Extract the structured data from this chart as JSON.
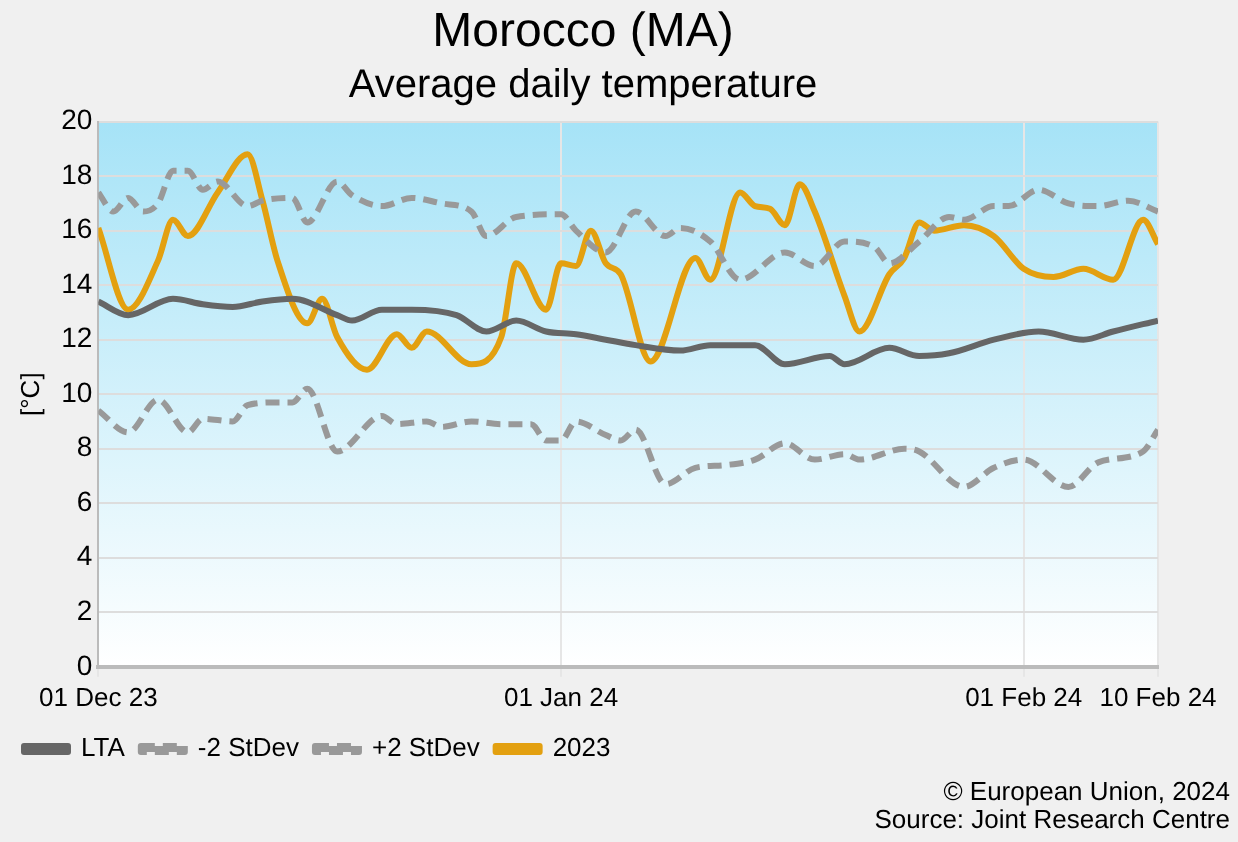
{
  "chart_data": {
    "type": "line",
    "title": "Morocco (MA)",
    "subtitle": "Average daily temperature",
    "ylabel": "[°C]",
    "xlim": [
      "2023-12-01",
      "2024-02-10"
    ],
    "xticks": [
      {
        "value": "2023-12-01",
        "label": "01 Dec 23"
      },
      {
        "value": "2024-01-01",
        "label": "01 Jan 24"
      },
      {
        "value": "2024-02-01",
        "label": "01 Feb 24"
      },
      {
        "value": "2024-02-10",
        "label": "10 Feb 24"
      }
    ],
    "ylim": [
      0,
      20
    ],
    "yticks": [
      0,
      2,
      4,
      6,
      8,
      10,
      12,
      14,
      16,
      18,
      20
    ],
    "grid": true,
    "legend": "bottom left",
    "annotations": [
      "© European Union, 2024",
      "Source: Joint Research Centre"
    ],
    "series": [
      {
        "name": "LTA",
        "color": "#666666",
        "line_style": "solid",
        "x": [
          "2023-12-01",
          "2023-12-03",
          "2023-12-06",
          "2023-12-08",
          "2023-12-10",
          "2023-12-12",
          "2023-12-14",
          "2023-12-17",
          "2023-12-18",
          "2023-12-20",
          "2023-12-22",
          "2023-12-25",
          "2023-12-27",
          "2023-12-29",
          "2023-12-31",
          "2024-01-02",
          "2024-01-04",
          "2024-01-06",
          "2024-01-09",
          "2024-01-11",
          "2024-01-14",
          "2024-01-16",
          "2024-01-19",
          "2024-01-20",
          "2024-01-23",
          "2024-01-25",
          "2024-01-27",
          "2024-01-30",
          "2024-02-02",
          "2024-02-05",
          "2024-02-07",
          "2024-02-10"
        ],
        "values": [
          13.4,
          12.9,
          13.5,
          13.3,
          13.2,
          13.4,
          13.5,
          12.9,
          12.7,
          13.1,
          13.1,
          12.9,
          12.3,
          12.7,
          12.3,
          12.2,
          12.0,
          11.8,
          11.6,
          11.8,
          11.8,
          11.1,
          11.4,
          11.1,
          11.7,
          11.4,
          11.5,
          12.0,
          12.3,
          12.0,
          12.3,
          12.7
        ]
      },
      {
        "name": "-2 StDev",
        "color": "#999999",
        "line_style": "dashed",
        "x": [
          "2023-12-01",
          "2023-12-03",
          "2023-12-05",
          "2023-12-07",
          "2023-12-08",
          "2023-12-10",
          "2023-12-11",
          "2023-12-13",
          "2023-12-14",
          "2023-12-15",
          "2023-12-17",
          "2023-12-20",
          "2023-12-21",
          "2023-12-23",
          "2023-12-24",
          "2023-12-26",
          "2023-12-28",
          "2023-12-30",
          "2023-12-31",
          "2024-01-01",
          "2024-01-02",
          "2024-01-04",
          "2024-01-05",
          "2024-01-06",
          "2024-01-08",
          "2024-01-10",
          "2024-01-12",
          "2024-01-14",
          "2024-01-16",
          "2024-01-18",
          "2024-01-20",
          "2024-01-21",
          "2024-01-24",
          "2024-01-25",
          "2024-01-28",
          "2024-01-30",
          "2024-02-01",
          "2024-02-04",
          "2024-02-06",
          "2024-02-09",
          "2024-02-10"
        ],
        "values": [
          9.4,
          8.6,
          9.8,
          8.6,
          9.1,
          9.0,
          9.6,
          9.7,
          9.7,
          10.2,
          7.9,
          9.2,
          8.9,
          9.0,
          8.8,
          9.0,
          8.9,
          8.9,
          8.3,
          8.3,
          9.0,
          8.5,
          8.3,
          8.7,
          6.7,
          7.3,
          7.4,
          7.6,
          8.2,
          7.6,
          7.8,
          7.6,
          8.0,
          7.9,
          6.6,
          7.3,
          7.6,
          6.6,
          7.5,
          7.9,
          8.7
        ]
      },
      {
        "name": "+2 StDev",
        "color": "#999999",
        "line_style": "dashed",
        "x": [
          "2023-12-01",
          "2023-12-02",
          "2023-12-03",
          "2023-12-04",
          "2023-12-05",
          "2023-12-06",
          "2023-12-07",
          "2023-12-08",
          "2023-12-09",
          "2023-12-11",
          "2023-12-12",
          "2023-12-14",
          "2023-12-15",
          "2023-12-17",
          "2023-12-18",
          "2023-12-20",
          "2023-12-22",
          "2023-12-24",
          "2023-12-26",
          "2023-12-27",
          "2023-12-29",
          "2024-01-01",
          "2024-01-02",
          "2024-01-04",
          "2024-01-06",
          "2024-01-08",
          "2024-01-09",
          "2024-01-11",
          "2024-01-13",
          "2024-01-16",
          "2024-01-18",
          "2024-01-20",
          "2024-01-22",
          "2024-01-23",
          "2024-01-25",
          "2024-01-27",
          "2024-01-28",
          "2024-01-30",
          "2024-01-31",
          "2024-02-02",
          "2024-02-04",
          "2024-02-06",
          "2024-02-08",
          "2024-02-10"
        ],
        "values": [
          17.4,
          16.7,
          17.2,
          16.7,
          17.0,
          18.2,
          18.2,
          17.5,
          17.8,
          16.9,
          17.1,
          17.2,
          16.3,
          17.8,
          17.3,
          16.9,
          17.2,
          17.0,
          16.7,
          15.8,
          16.5,
          16.6,
          16.0,
          15.2,
          16.7,
          15.8,
          16.1,
          15.6,
          14.2,
          15.2,
          14.7,
          15.6,
          15.4,
          14.8,
          15.6,
          16.5,
          16.4,
          16.9,
          16.9,
          17.5,
          17.0,
          16.9,
          17.1,
          16.7
        ]
      },
      {
        "name": "2023",
        "color": "#e3a010",
        "line_style": "solid",
        "x": [
          "2023-12-01",
          "2023-12-03",
          "2023-12-05",
          "2023-12-06",
          "2023-12-07",
          "2023-12-09",
          "2023-12-11",
          "2023-12-12",
          "2023-12-13",
          "2023-12-15",
          "2023-12-16",
          "2023-12-17",
          "2023-12-19",
          "2023-12-21",
          "2023-12-22",
          "2023-12-23",
          "2023-12-26",
          "2023-12-28",
          "2023-12-29",
          "2023-12-31",
          "2024-01-01",
          "2024-01-02",
          "2024-01-03",
          "2024-01-04",
          "2024-01-05",
          "2024-01-07",
          "2024-01-10",
          "2024-01-11",
          "2024-01-13",
          "2024-01-14",
          "2024-01-15",
          "2024-01-16",
          "2024-01-17",
          "2024-01-18",
          "2024-01-20",
          "2024-01-21",
          "2024-01-23",
          "2024-01-24",
          "2024-01-25",
          "2024-01-26",
          "2024-01-28",
          "2024-01-30",
          "2024-02-01",
          "2024-02-03",
          "2024-02-05",
          "2024-02-07",
          "2024-02-09",
          "2024-02-10"
        ],
        "values": [
          16.1,
          13.1,
          14.9,
          16.4,
          15.8,
          17.4,
          18.8,
          17.1,
          14.9,
          12.6,
          13.5,
          12.1,
          10.9,
          12.2,
          11.7,
          12.3,
          11.1,
          12.1,
          14.8,
          13.1,
          14.8,
          14.7,
          16.0,
          14.8,
          14.4,
          11.2,
          15.0,
          14.2,
          17.4,
          16.9,
          16.8,
          16.2,
          17.7,
          16.7,
          13.6,
          12.3,
          14.4,
          15.0,
          16.3,
          16.0,
          16.2,
          15.8,
          14.6,
          14.3,
          14.6,
          14.2,
          16.4,
          15.5
        ]
      }
    ]
  }
}
